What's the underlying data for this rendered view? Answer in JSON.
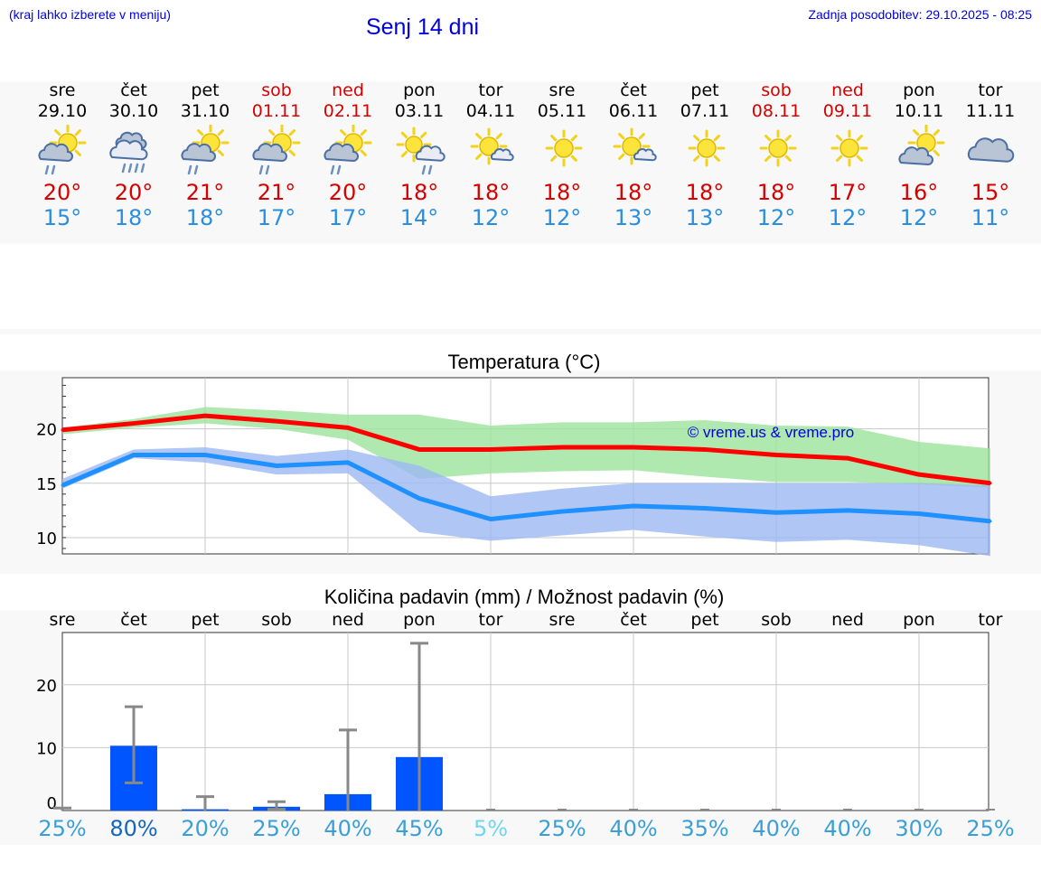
{
  "header": {
    "left_note": "(kraj lahko izberete v meniju)",
    "title": "Senj 14 dni",
    "right_note": "Zadnja posodobitev: 29.10.2025 - 08:25"
  },
  "colors": {
    "title_blue": "#0000dd",
    "weekend_red": "#d60000",
    "max_red": "#ff0000",
    "min_blue": "#1e90ff",
    "max_band": "#9be39b",
    "min_band": "#9cb8f2",
    "bar_blue": "#0055ff",
    "error_gray": "#888888"
  },
  "days": [
    {
      "name": "sre",
      "date": "29.10",
      "weekend": false,
      "icon": "sun-cloud-rain-icon",
      "max": "20°",
      "min": "15°"
    },
    {
      "name": "čet",
      "date": "30.10",
      "weekend": false,
      "icon": "cloud-rain-icon",
      "max": "20°",
      "min": "18°"
    },
    {
      "name": "pet",
      "date": "31.10",
      "weekend": false,
      "icon": "sun-cloud-rain-icon",
      "max": "21°",
      "min": "18°"
    },
    {
      "name": "sob",
      "date": "01.11",
      "weekend": true,
      "icon": "sun-cloud-rain-icon",
      "max": "21°",
      "min": "17°"
    },
    {
      "name": "ned",
      "date": "02.11",
      "weekend": true,
      "icon": "sun-cloud-rain-icon",
      "max": "20°",
      "min": "17°"
    },
    {
      "name": "pon",
      "date": "03.11",
      "weekend": false,
      "icon": "sun-rain-cloud-icon",
      "max": "18°",
      "min": "14°"
    },
    {
      "name": "tor",
      "date": "04.11",
      "weekend": false,
      "icon": "sun-small-cloud-icon",
      "max": "18°",
      "min": "12°"
    },
    {
      "name": "sre",
      "date": "05.11",
      "weekend": false,
      "icon": "sun-icon",
      "max": "18°",
      "min": "12°"
    },
    {
      "name": "čet",
      "date": "06.11",
      "weekend": false,
      "icon": "sun-small-cloud-icon",
      "max": "18°",
      "min": "13°"
    },
    {
      "name": "pet",
      "date": "07.11",
      "weekend": false,
      "icon": "sun-icon",
      "max": "18°",
      "min": "13°"
    },
    {
      "name": "sob",
      "date": "08.11",
      "weekend": true,
      "icon": "sun-icon",
      "max": "18°",
      "min": "12°"
    },
    {
      "name": "ned",
      "date": "09.11",
      "weekend": true,
      "icon": "sun-icon",
      "max": "17°",
      "min": "12°"
    },
    {
      "name": "pon",
      "date": "10.11",
      "weekend": false,
      "icon": "sun-cloud-icon",
      "max": "16°",
      "min": "12°"
    },
    {
      "name": "tor",
      "date": "11.11",
      "weekend": false,
      "icon": "cloud-icon",
      "max": "15°",
      "min": "11°"
    }
  ],
  "chart_data": [
    {
      "type": "line",
      "title": "Temperatura (°C)",
      "watermark": "© vreme.us & vreme.pro",
      "x": [
        "29.10",
        "30.10",
        "31.10",
        "01.11",
        "02.11",
        "03.11",
        "04.11",
        "05.11",
        "06.11",
        "07.11",
        "08.11",
        "09.11",
        "10.11",
        "11.11"
      ],
      "ylim": [
        8.5,
        24.7
      ],
      "yticks": [
        10,
        15,
        20
      ],
      "ytick_labels": [
        "10",
        "15",
        "20"
      ],
      "grid": true,
      "series": [
        {
          "name": "max",
          "values": [
            19.9,
            20.5,
            21.2,
            20.7,
            20.1,
            18.1,
            18.1,
            18.3,
            18.3,
            18.1,
            17.6,
            17.3,
            15.8,
            15.0
          ],
          "band_low": [
            19.5,
            20.1,
            20.5,
            20.0,
            19.0,
            15.4,
            15.9,
            16.1,
            16.2,
            15.6,
            15.1,
            15.1,
            14.9,
            14.6
          ],
          "band_high": [
            20.1,
            20.9,
            22.0,
            21.7,
            21.3,
            21.3,
            20.3,
            20.6,
            20.6,
            20.8,
            20.3,
            20.2,
            18.8,
            18.2
          ]
        },
        {
          "name": "min",
          "values": [
            14.8,
            17.6,
            17.6,
            16.6,
            16.9,
            13.6,
            11.7,
            12.4,
            12.9,
            12.7,
            12.3,
            12.5,
            12.2,
            11.5
          ],
          "band_low": [
            14.5,
            17.3,
            16.9,
            15.8,
            15.9,
            10.5,
            9.7,
            10.2,
            10.7,
            10.1,
            9.6,
            9.8,
            9.3,
            8.3
          ],
          "band_high": [
            15.4,
            18.1,
            18.3,
            17.5,
            18.1,
            16.6,
            13.8,
            14.5,
            15.0,
            15.0,
            15.0,
            15.0,
            15.0,
            14.8
          ]
        }
      ]
    },
    {
      "type": "bar",
      "title": "Količina padavin (mm) / Možnost padavin (%)",
      "categories": [
        "sre",
        "čet",
        "pet",
        "sob",
        "ned",
        "pon",
        "tor",
        "sre",
        "čet",
        "pet",
        "sob",
        "ned",
        "pon",
        "tor"
      ],
      "values": [
        0,
        10.3,
        0.2,
        0.6,
        2.6,
        8.5,
        0,
        0,
        0,
        0,
        0,
        0,
        0,
        0
      ],
      "error_low": [
        0,
        4.4,
        0,
        0.2,
        0,
        0,
        0,
        0,
        0,
        0,
        0,
        0,
        0,
        0
      ],
      "error_high": [
        0.4,
        16.5,
        2.2,
        1.4,
        12.8,
        26.6,
        0,
        0,
        0,
        0,
        0,
        0,
        0,
        0
      ],
      "probability": [
        "25%",
        "80%",
        "20%",
        "25%",
        "40%",
        "45%",
        "5%",
        "25%",
        "40%",
        "35%",
        "40%",
        "40%",
        "30%",
        "25%"
      ],
      "probability_colors": [
        "#3a9fd8",
        "#1565c0",
        "#3a9fd8",
        "#3a9fd8",
        "#3a9fd8",
        "#3a9fd8",
        "#6fd6f0",
        "#3a9fd8",
        "#3a9fd8",
        "#3a9fd8",
        "#3a9fd8",
        "#3a9fd8",
        "#3a9fd8",
        "#3a9fd8"
      ],
      "ylim": [
        0,
        28.3
      ],
      "yticks": [
        0,
        10,
        20
      ],
      "ytick_labels": [
        "0",
        "10",
        "20"
      ],
      "grid": true
    }
  ]
}
